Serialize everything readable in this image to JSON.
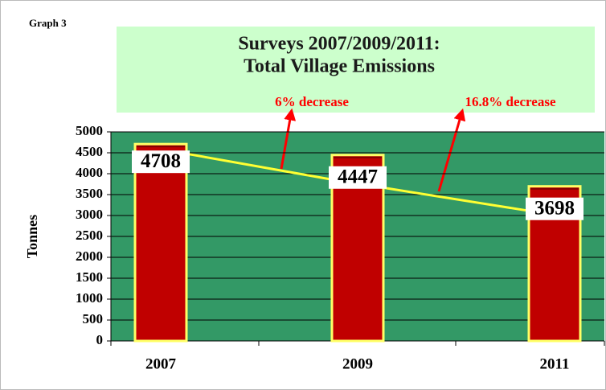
{
  "chart_data": {
    "type": "bar",
    "caption": "Graph 3",
    "title": [
      "Surveys 2007/2009/2011:",
      "Total Village Emissions"
    ],
    "ylabel": "Tonnes",
    "categories": [
      "2007",
      "2009",
      "2011"
    ],
    "values": [
      4708,
      4447,
      3698
    ],
    "color": "#c00000",
    "ylim": [
      0,
      5000
    ],
    "yticks": [
      0,
      500,
      1000,
      1500,
      2000,
      2500,
      3000,
      3500,
      4000,
      4500,
      5000
    ],
    "grid": true,
    "annotations": [
      "6% decrease",
      "16.8% decrease"
    ]
  }
}
